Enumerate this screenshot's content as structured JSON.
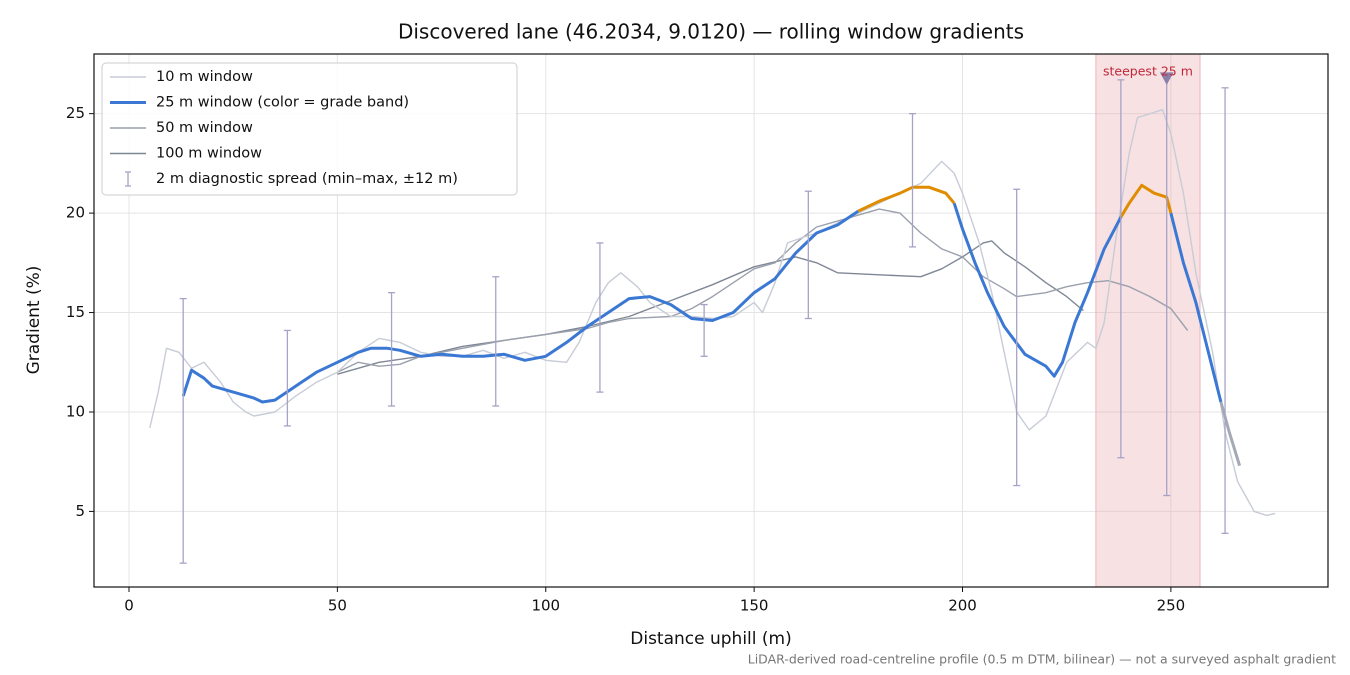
{
  "chart_data": {
    "type": "line",
    "title": "Discovered lane (46.2034, 9.0120) — rolling window gradients",
    "x_label": "Distance uphill (m)",
    "y_label": "Gradient (%)",
    "footnote": "LiDAR-derived road-centreline profile (0.5 m DTM, bilinear) — not a surveyed asphalt gradient",
    "xlim": [
      -8.4,
      287.7
    ],
    "ylim": [
      1.2,
      28.0
    ],
    "xticks": [
      0,
      50,
      100,
      150,
      200,
      250
    ],
    "yticks": [
      5,
      10,
      15,
      20,
      25
    ],
    "grid": true,
    "legend": "upper left",
    "series": [
      {
        "name": "10 m window",
        "color": "#c7ccd6",
        "x": [
          5,
          7,
          9,
          12,
          15,
          18,
          22,
          25,
          28,
          30,
          35,
          40,
          45,
          50,
          55,
          60,
          65,
          70,
          75,
          80,
          85,
          90,
          95,
          100,
          105,
          108,
          112,
          115,
          118,
          122,
          125,
          130,
          135,
          140,
          145,
          150,
          152,
          155,
          158,
          162,
          165,
          170,
          175,
          180,
          185,
          190,
          195,
          198,
          200,
          204,
          207,
          210,
          213,
          216,
          220,
          225,
          230,
          232,
          234,
          237,
          240,
          242,
          245,
          248,
          250,
          253,
          256,
          260,
          263,
          266,
          270,
          273,
          275
        ],
        "values": [
          9.2,
          11,
          13.2,
          13,
          12.2,
          12.5,
          11.5,
          10.5,
          10,
          9.8,
          10,
          10.8,
          11.5,
          12,
          13,
          13.7,
          13.5,
          13,
          12.8,
          12.8,
          13.1,
          12.7,
          13,
          12.6,
          12.5,
          13.5,
          15.5,
          16.5,
          17,
          16.3,
          15.5,
          14.8,
          14.8,
          14.7,
          14.8,
          15.5,
          15,
          16.5,
          18.5,
          18.8,
          19,
          19.5,
          20,
          20.5,
          21,
          21.5,
          22.6,
          22,
          21,
          18.5,
          16,
          13,
          10,
          9.1,
          9.8,
          12.5,
          13.5,
          13.2,
          14.5,
          19,
          23,
          24.8,
          25,
          25.2,
          24,
          21,
          17,
          13,
          9,
          6.5,
          5,
          4.8,
          4.9
        ]
      },
      {
        "name": "25 m window (color = grade band)",
        "color": "#3a78d4",
        "band_colors": [
          "#a3a9b6",
          "#3a78d4",
          "#e08c00"
        ],
        "band_thresholds": [
          10,
          20
        ],
        "x": [
          13,
          15,
          18,
          20,
          25,
          30,
          32,
          35,
          40,
          45,
          50,
          55,
          58,
          62,
          65,
          70,
          75,
          80,
          85,
          90,
          95,
          100,
          105,
          110,
          115,
          120,
          125,
          130,
          135,
          140,
          145,
          150,
          155,
          160,
          165,
          170,
          175,
          180,
          185,
          188,
          192,
          196,
          198,
          200,
          203,
          206,
          210,
          215,
          220,
          222,
          224,
          227,
          230,
          234,
          238,
          240,
          243,
          246,
          249,
          250,
          253,
          256,
          259,
          262,
          264,
          266.5
        ],
        "values": [
          10.8,
          12.1,
          11.7,
          11.3,
          11,
          10.7,
          10.5,
          10.6,
          11.3,
          12,
          12.5,
          13,
          13.2,
          13.2,
          13.1,
          12.8,
          12.9,
          12.8,
          12.8,
          12.9,
          12.6,
          12.8,
          13.5,
          14.3,
          15,
          15.7,
          15.8,
          15.4,
          14.7,
          14.6,
          15,
          16,
          16.7,
          18,
          19,
          19.4,
          20.1,
          20.6,
          21,
          21.3,
          21.3,
          21,
          20.5,
          19.2,
          17.5,
          16,
          14.3,
          12.9,
          12.3,
          11.8,
          12.5,
          14.5,
          16,
          18.2,
          19.8,
          20.5,
          21.4,
          21,
          20.8,
          20,
          17.5,
          15.5,
          13,
          10.5,
          9,
          7.3
        ]
      },
      {
        "name": "50 m window",
        "color": "#9aa0ac",
        "x": [
          50,
          55,
          60,
          65,
          70,
          80,
          90,
          100,
          110,
          115,
          120,
          130,
          135,
          140,
          145,
          150,
          155,
          160,
          165,
          170,
          175,
          180,
          185,
          190,
          195,
          200,
          205,
          210,
          213,
          220,
          225,
          230,
          235,
          240,
          245,
          250,
          254
        ],
        "values": [
          12,
          12.5,
          12.3,
          12.4,
          12.8,
          13.2,
          13.6,
          13.9,
          14.2,
          14.5,
          14.7,
          14.8,
          15.2,
          15.8,
          16.5,
          17.2,
          17.5,
          18.5,
          19.3,
          19.6,
          19.9,
          20.2,
          20,
          19,
          18.2,
          17.8,
          16.8,
          16.2,
          15.8,
          16,
          16.3,
          16.5,
          16.6,
          16.3,
          15.8,
          15.2,
          14.1
        ]
      },
      {
        "name": "100 m window",
        "color": "#7f8796",
        "x": [
          50,
          60,
          70,
          80,
          90,
          100,
          110,
          120,
          130,
          140,
          150,
          160,
          165,
          170,
          180,
          190,
          195,
          200,
          205,
          207,
          210,
          215,
          220,
          225,
          229
        ],
        "values": [
          11.9,
          12.5,
          12.8,
          13.3,
          13.6,
          13.9,
          14.3,
          14.8,
          15.6,
          16.4,
          17.3,
          17.8,
          17.5,
          17,
          16.9,
          16.8,
          17.2,
          17.8,
          18.5,
          18.6,
          18,
          17.3,
          16.5,
          15.8,
          15.1
        ]
      }
    ],
    "spread": {
      "name": "2 m diagnostic spread (min–max, ±12 m)",
      "color": "#a7a3c6",
      "x": [
        13,
        38,
        63,
        88,
        113,
        138,
        163,
        188,
        213,
        238,
        249,
        263
      ],
      "low": [
        2.4,
        9.3,
        10.3,
        10.3,
        11.0,
        12.8,
        14.7,
        18.3,
        6.3,
        7.7,
        5.8,
        3.9
      ],
      "high": [
        15.7,
        14.1,
        16.0,
        16.8,
        18.5,
        15.4,
        21.1,
        25.0,
        21.2,
        26.7,
        27.0,
        26.3
      ]
    },
    "highlight": {
      "x0": 232,
      "x1": 257,
      "color": "#e8a8b0"
    },
    "annotation": {
      "text": "steepest 25 m",
      "x": 249,
      "y": 26.8,
      "color": "#c0283a"
    }
  }
}
